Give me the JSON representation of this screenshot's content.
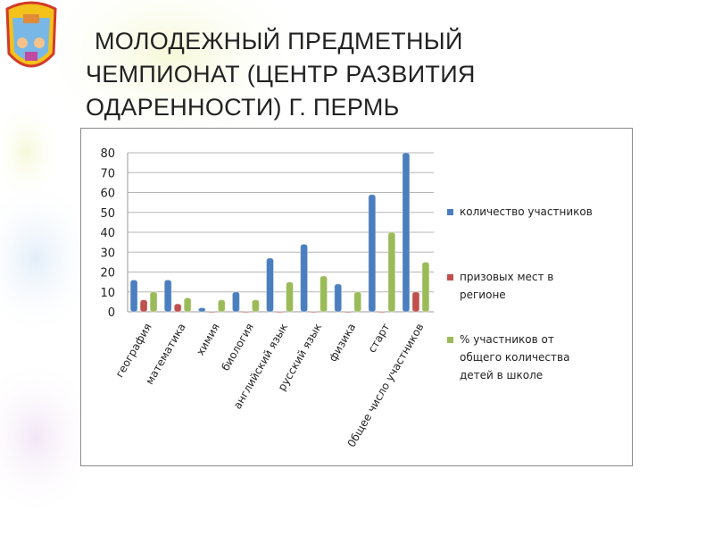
{
  "slide": {
    "title_lines": [
      "МОЛОДЕЖНЫЙ ПРЕДМЕТНЫЙ",
      "ЧЕМПИОНАТ  (ЦЕНТР РАЗВИТИЯ",
      "ОДАРЕННОСТИ) Г. ПЕРМЬ"
    ]
  },
  "chart_data": {
    "type": "bar",
    "title": "",
    "xlabel": "",
    "ylabel": "",
    "ylim": [
      0,
      80
    ],
    "yticks": [
      "0",
      "10",
      "20",
      "30",
      "40",
      "50",
      "60",
      "70",
      "80"
    ],
    "grid": true,
    "legend_position": "right",
    "categories": [
      "география",
      "математика",
      "химия",
      "биология",
      "английский язык",
      "русский язык",
      "физика",
      "старт",
      "0бщее число участников"
    ],
    "series": [
      {
        "name": "количество участников",
        "color": "#4a7ebf",
        "values": [
          16,
          16,
          2,
          10,
          27,
          34,
          14,
          59,
          80
        ]
      },
      {
        "name": "призовых мест в регионе",
        "color": "#c0504d",
        "values": [
          6,
          4,
          0,
          0,
          0,
          0,
          0,
          0,
          10
        ]
      },
      {
        "name": "% участников от общего количества детей в школе",
        "color": "#9bbb59",
        "values": [
          10,
          7,
          6,
          6,
          15,
          18,
          10,
          40,
          25
        ]
      }
    ],
    "legend_lines": [
      [
        "количество участников"
      ],
      [
        "призовых мест в",
        "регионе"
      ],
      [
        "% участников от",
        "общего количества",
        "детей в школе"
      ]
    ]
  }
}
